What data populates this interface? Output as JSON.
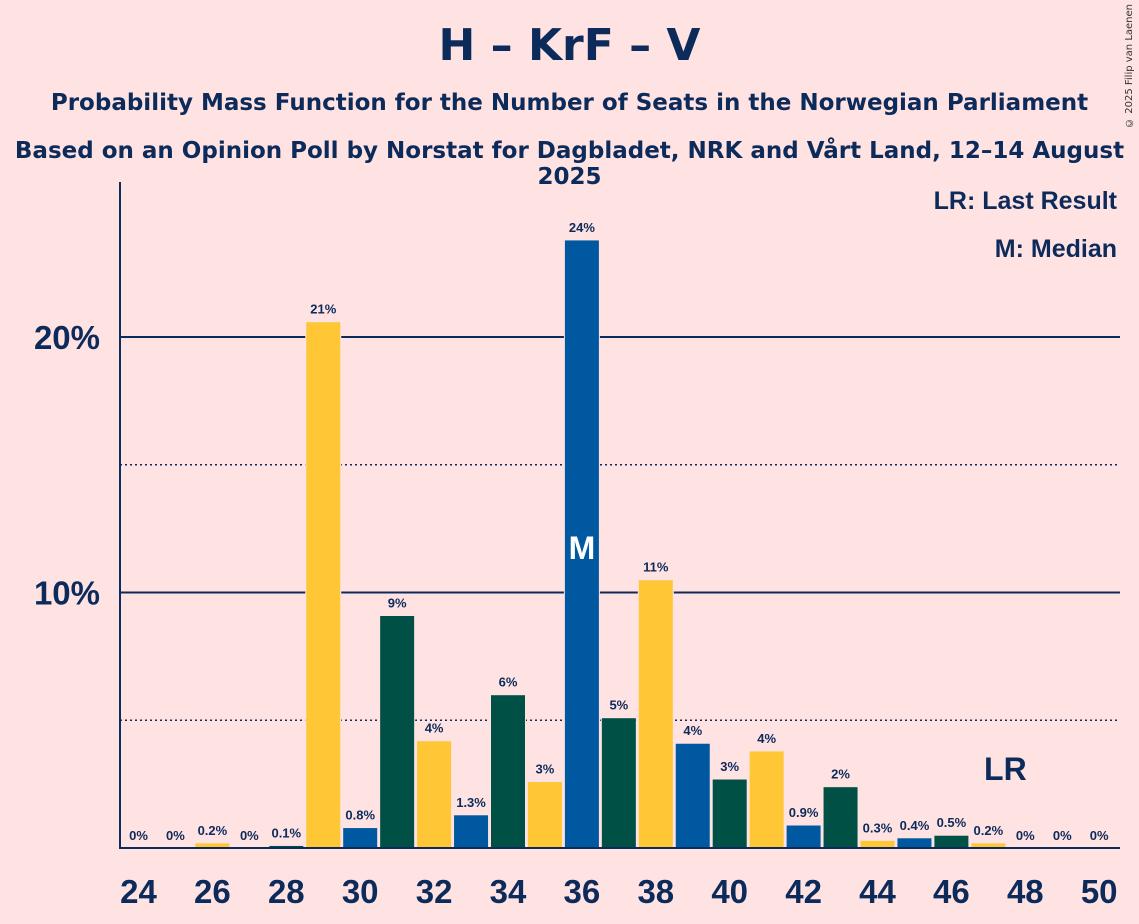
{
  "header": {
    "title": "H – KrF – V",
    "subtitle1": "Probability Mass Function for the Number of Seats in the Norwegian Parliament",
    "subtitle2": "Based on an Opinion Poll by Norstat for Dagbladet, NRK and Vårt Land, 12–14 August 2025",
    "credit": "© 2025 Filip van Laenen"
  },
  "legend": {
    "lr": "LR: Last Result",
    "m": "M: Median"
  },
  "chart_data": {
    "type": "bar",
    "categories": [
      24,
      25,
      26,
      27,
      28,
      29,
      30,
      31,
      32,
      33,
      34,
      35,
      36,
      37,
      38,
      39,
      40,
      41,
      42,
      43,
      44,
      45,
      46,
      47,
      48,
      49,
      50
    ],
    "values": [
      0,
      0,
      0.2,
      0,
      0.1,
      20.6,
      0.8,
      9.1,
      4.2,
      1.3,
      6.0,
      2.6,
      23.8,
      5.1,
      10.5,
      4.1,
      2.7,
      3.8,
      0.9,
      2.4,
      0.3,
      0.4,
      0.5,
      0.2,
      0,
      0,
      0
    ],
    "data_labels": [
      "0%",
      "0%",
      "0.2%",
      "0%",
      "0.1%",
      "21%",
      "0.8%",
      "9%",
      "4%",
      "1.3%",
      "6%",
      "3%",
      "24%",
      "5%",
      "11%",
      "4%",
      "3%",
      "4%",
      "0.9%",
      "2%",
      "0.3%",
      "0.4%",
      "0.5%",
      "0.2%",
      "0%",
      "0%",
      "0%"
    ],
    "x_tick_labels": [
      "24",
      "26",
      "28",
      "30",
      "32",
      "34",
      "36",
      "38",
      "40",
      "42",
      "44",
      "46",
      "48",
      "50"
    ],
    "y_tick_labels": [
      "10%",
      "20%"
    ],
    "ylim": [
      0,
      26
    ],
    "median": 36,
    "median_label": "M",
    "last_result": 47,
    "last_result_label": "LR",
    "bar_colors": [
      "#0058a0",
      "#005045",
      "#ffc735"
    ],
    "grid": "solid at 10% and 20%, dotted at 5% and 15%"
  }
}
